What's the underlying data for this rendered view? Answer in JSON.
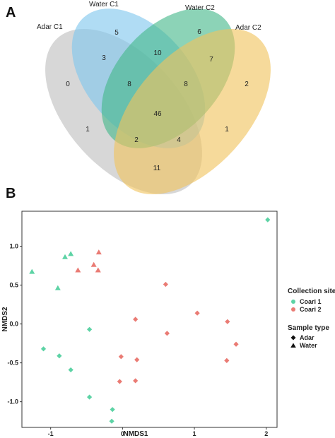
{
  "panels": {
    "a_label": "A",
    "b_label": "B"
  },
  "chart_data": [
    {
      "type": "venn",
      "sets": [
        {
          "name": "Adar C1",
          "color": "#bfbfbf"
        },
        {
          "name": "Water C1",
          "color": "#7fc6ee"
        },
        {
          "name": "Water C2",
          "color": "#45b88a"
        },
        {
          "name": "Adar C2",
          "color": "#f0c45e"
        }
      ],
      "regions": [
        {
          "sets": [
            "Water C1"
          ],
          "value": "5"
        },
        {
          "sets": [
            "Water C2"
          ],
          "value": "6"
        },
        {
          "sets": [
            "Adar C1"
          ],
          "value": "0"
        },
        {
          "sets": [
            "Adar C2"
          ],
          "value": "2"
        },
        {
          "sets": [
            "Adar C1",
            "Water C1"
          ],
          "value": "3"
        },
        {
          "sets": [
            "Water C1",
            "Water C2"
          ],
          "value": "10"
        },
        {
          "sets": [
            "Water C2",
            "Adar C2"
          ],
          "value": "7"
        },
        {
          "sets": [
            "Adar C1",
            "Water C1",
            "Water C2"
          ],
          "value": "8"
        },
        {
          "sets": [
            "Water C1",
            "Water C2",
            "Adar C2"
          ],
          "value": "8"
        },
        {
          "sets": [
            "Adar C1",
            "Water C1",
            "Water C2",
            "Adar C2"
          ],
          "value": "46"
        },
        {
          "sets": [
            "Adar C1",
            "Water C2"
          ],
          "value": "1"
        },
        {
          "sets": [
            "Water C1",
            "Adar C2"
          ],
          "value": "1"
        },
        {
          "sets": [
            "Adar C1",
            "Water C2",
            "Adar C2"
          ],
          "value": "2"
        },
        {
          "sets": [
            "Adar C1",
            "Water C1",
            "Adar C2"
          ],
          "value": "4"
        },
        {
          "sets": [
            "Adar C1",
            "Adar C2"
          ],
          "value": "11"
        }
      ]
    },
    {
      "type": "scatter",
      "xlabel": "NMDS1",
      "ylabel": "NMDS2",
      "xlim": [
        -1.4,
        2.15
      ],
      "ylim": [
        -1.33,
        1.45
      ],
      "xticks": [
        -1,
        0,
        1,
        2
      ],
      "yticks": [
        -1.0,
        -0.5,
        0.0,
        0.5,
        1.0
      ],
      "xtick_labels": [
        "-1",
        "0",
        "1",
        "2"
      ],
      "ytick_labels": [
        "-1.0",
        "-0.5",
        "0.0",
        "0.5",
        "1.0"
      ],
      "grid": false,
      "legend_position": "right",
      "colors": {
        "Coari 1": "#5dd3a5",
        "Coari 2": "#ea7b74"
      },
      "legend": {
        "site_title": "Collection site",
        "sites": [
          "Coari 1",
          "Coari 2"
        ],
        "type_title": "Sample type",
        "types": [
          "Adar",
          "Water"
        ]
      },
      "points": [
        {
          "x": 2.02,
          "y": 1.34,
          "site": "Coari 1",
          "type": "Adar"
        },
        {
          "x": -1.26,
          "y": 0.67,
          "site": "Coari 1",
          "type": "Water"
        },
        {
          "x": -0.9,
          "y": 0.46,
          "site": "Coari 1",
          "type": "Water"
        },
        {
          "x": -0.8,
          "y": 0.86,
          "site": "Coari 1",
          "type": "Water"
        },
        {
          "x": -0.72,
          "y": 0.9,
          "site": "Coari 1",
          "type": "Water"
        },
        {
          "x": -0.46,
          "y": -0.07,
          "site": "Coari 1",
          "type": "Adar"
        },
        {
          "x": -1.1,
          "y": -0.32,
          "site": "Coari 1",
          "type": "Adar"
        },
        {
          "x": -0.88,
          "y": -0.41,
          "site": "Coari 1",
          "type": "Adar"
        },
        {
          "x": -0.72,
          "y": -0.59,
          "site": "Coari 1",
          "type": "Adar"
        },
        {
          "x": -0.46,
          "y": -0.94,
          "site": "Coari 1",
          "type": "Adar"
        },
        {
          "x": -0.14,
          "y": -1.1,
          "site": "Coari 1",
          "type": "Adar"
        },
        {
          "x": -0.15,
          "y": -1.25,
          "site": "Coari 1",
          "type": "Adar"
        },
        {
          "x": -0.33,
          "y": 0.92,
          "site": "Coari 2",
          "type": "Water"
        },
        {
          "x": -0.4,
          "y": 0.76,
          "site": "Coari 2",
          "type": "Water"
        },
        {
          "x": -0.62,
          "y": 0.69,
          "site": "Coari 2",
          "type": "Water"
        },
        {
          "x": -0.34,
          "y": 0.69,
          "site": "Coari 2",
          "type": "Water"
        },
        {
          "x": 0.6,
          "y": 0.51,
          "site": "Coari 2",
          "type": "Adar"
        },
        {
          "x": 1.04,
          "y": 0.14,
          "site": "Coari 2",
          "type": "Adar"
        },
        {
          "x": 0.18,
          "y": 0.06,
          "site": "Coari 2",
          "type": "Adar"
        },
        {
          "x": 1.46,
          "y": 0.03,
          "site": "Coari 2",
          "type": "Adar"
        },
        {
          "x": 0.62,
          "y": -0.12,
          "site": "Coari 2",
          "type": "Adar"
        },
        {
          "x": 1.58,
          "y": -0.26,
          "site": "Coari 2",
          "type": "Adar"
        },
        {
          "x": -0.02,
          "y": -0.42,
          "site": "Coari 2",
          "type": "Adar"
        },
        {
          "x": 0.2,
          "y": -0.46,
          "site": "Coari 2",
          "type": "Adar"
        },
        {
          "x": 1.45,
          "y": -0.47,
          "site": "Coari 2",
          "type": "Adar"
        },
        {
          "x": -0.04,
          "y": -0.74,
          "site": "Coari 2",
          "type": "Adar"
        },
        {
          "x": 0.18,
          "y": -0.73,
          "site": "Coari 2",
          "type": "Adar"
        }
      ]
    }
  ]
}
